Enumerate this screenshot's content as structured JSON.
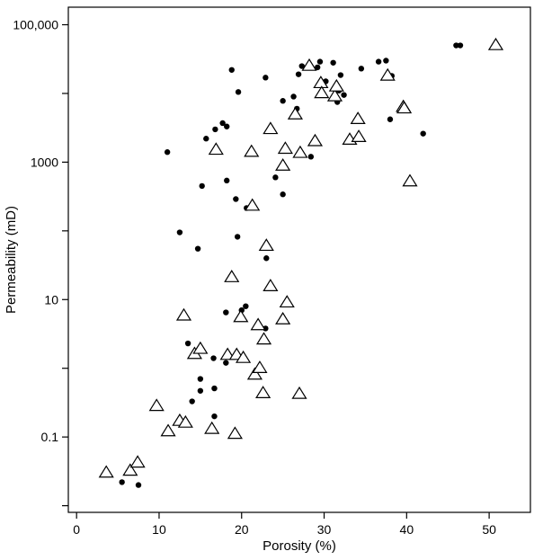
{
  "chart_data": {
    "type": "scatter",
    "xlabel": "Porosity (%)",
    "ylabel": "Permeability (mD)",
    "x_scale": "linear",
    "y_scale": "log",
    "xlim": [
      -1,
      55
    ],
    "ylim": [
      0.008,
      180000
    ],
    "x_ticks": [
      0,
      10,
      20,
      30,
      40,
      50
    ],
    "x_tick_labels": [
      "0",
      "10",
      "20",
      "30",
      "40",
      "50"
    ],
    "y_ticks": [
      0.01,
      0.1,
      1,
      10,
      100,
      1000,
      10000,
      100000
    ],
    "y_tick_labels": [
      "",
      "0.1",
      "",
      "10",
      "",
      "1000",
      "",
      "100,000"
    ],
    "grid": false,
    "legend": "none",
    "series": [
      {
        "marker": "filled-circle",
        "color": "#000000",
        "points": [
          [
            5.5,
            0.022
          ],
          [
            7.5,
            0.02
          ],
          [
            11,
            1400
          ],
          [
            12.5,
            95
          ],
          [
            13.5,
            2.3
          ],
          [
            14,
            0.33
          ],
          [
            14.7,
            55
          ],
          [
            15,
            0.7
          ],
          [
            15,
            0.47
          ],
          [
            15.2,
            450
          ],
          [
            15.7,
            2200
          ],
          [
            16.6,
            1.4
          ],
          [
            16.7,
            0.51
          ],
          [
            16.7,
            0.2
          ],
          [
            16.8,
            3000
          ],
          [
            17.7,
            3700
          ],
          [
            18.1,
            1.2
          ],
          [
            18.1,
            6.5
          ],
          [
            18.2,
            540
          ],
          [
            18.2,
            3300
          ],
          [
            18.8,
            22000
          ],
          [
            19.3,
            290
          ],
          [
            19.5,
            82
          ],
          [
            19.6,
            10500
          ],
          [
            20,
            7
          ],
          [
            20.5,
            8
          ],
          [
            20.6,
            215
          ],
          [
            22.9,
            17000
          ],
          [
            22.9,
            3.8
          ],
          [
            23,
            40
          ],
          [
            24.1,
            600
          ],
          [
            25,
            340
          ],
          [
            25,
            7800
          ],
          [
            26.3,
            9000
          ],
          [
            26.7,
            6000
          ],
          [
            26.9,
            19000
          ],
          [
            27.3,
            25000
          ],
          [
            28.4,
            1200
          ],
          [
            29.2,
            24000
          ],
          [
            29.5,
            29000
          ],
          [
            30.2,
            15000
          ],
          [
            31.1,
            28000
          ],
          [
            31.6,
            7500
          ],
          [
            31.8,
            11000
          ],
          [
            32,
            18500
          ],
          [
            32.4,
            9500
          ],
          [
            34.5,
            23000
          ],
          [
            36.6,
            29000
          ],
          [
            37.5,
            30000
          ],
          [
            38,
            4200
          ],
          [
            38.2,
            18000
          ],
          [
            42,
            2600
          ],
          [
            46,
            50000
          ],
          [
            46.5,
            50000
          ]
        ]
      },
      {
        "marker": "open-triangle",
        "color": "#000000",
        "points": [
          [
            3.6,
            0.03
          ],
          [
            6.5,
            0.032
          ],
          [
            7.4,
            0.042
          ],
          [
            9.7,
            0.28
          ],
          [
            11.1,
            0.12
          ],
          [
            12.5,
            0.17
          ],
          [
            13.2,
            0.16
          ],
          [
            13,
            5.8
          ],
          [
            14.3,
            1.6
          ],
          [
            15,
            1.9
          ],
          [
            16.4,
            0.13
          ],
          [
            16.9,
            1500
          ],
          [
            18.3,
            1.55
          ],
          [
            18.8,
            21
          ],
          [
            19.2,
            0.11
          ],
          [
            19.4,
            1.55
          ],
          [
            19.9,
            5.5
          ],
          [
            20.2,
            1.4
          ],
          [
            21.2,
            1400
          ],
          [
            21.3,
            230
          ],
          [
            21.6,
            0.8
          ],
          [
            22,
            4.2
          ],
          [
            22.2,
            1
          ],
          [
            22.6,
            0.43
          ],
          [
            22.7,
            2.6
          ],
          [
            23,
            60
          ],
          [
            23.5,
            3000
          ],
          [
            23.5,
            15.5
          ],
          [
            25,
            5.1
          ],
          [
            25,
            880
          ],
          [
            25.3,
            1550
          ],
          [
            25.5,
            9
          ],
          [
            26.5,
            4900
          ],
          [
            27,
            0.42
          ],
          [
            27.1,
            1350
          ],
          [
            28.2,
            25000
          ],
          [
            28.9,
            2000
          ],
          [
            29.6,
            14000
          ],
          [
            29.7,
            10000
          ],
          [
            31.3,
            9000
          ],
          [
            31.5,
            12500
          ],
          [
            33.1,
            2100
          ],
          [
            34.1,
            4200
          ],
          [
            34.2,
            2300
          ],
          [
            37.7,
            18000
          ],
          [
            39.6,
            6300
          ],
          [
            39.7,
            6000
          ],
          [
            40.4,
            520
          ],
          [
            50.8,
            50000
          ]
        ]
      }
    ]
  }
}
